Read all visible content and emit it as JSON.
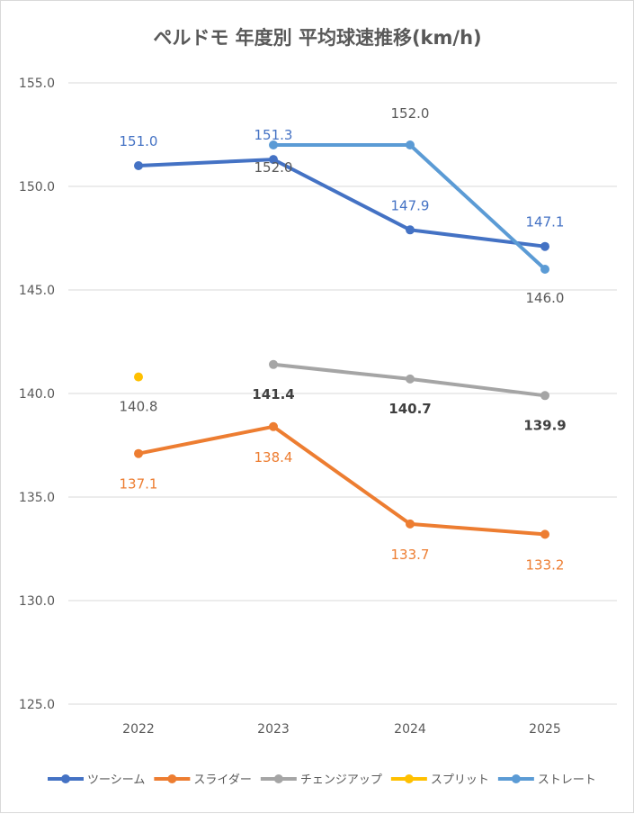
{
  "chart_data": {
    "type": "line",
    "title": "ペルドモ 年度別 平均球速推移(km/h)",
    "categories": [
      "2022",
      "2023",
      "2024",
      "2025"
    ],
    "ylim": [
      125,
      155
    ],
    "yticks": [
      "125.0",
      "130.0",
      "135.0",
      "140.0",
      "145.0",
      "150.0",
      "155.0"
    ],
    "grid": true,
    "legend_position": "bottom",
    "series": [
      {
        "name": "ツーシーム",
        "color": "#4472C4",
        "values": [
          151.0,
          151.3,
          147.9,
          147.1
        ],
        "labels": [
          "151.0",
          "151.3",
          "147.9",
          "147.1"
        ],
        "label_color": "#4472C4",
        "label_bold": false
      },
      {
        "name": "スライダー",
        "color": "#ED7D31",
        "values": [
          137.1,
          138.4,
          133.7,
          133.2
        ],
        "labels": [
          "137.1",
          "138.4",
          "133.7",
          "133.2"
        ],
        "label_color": "#ED7D31",
        "label_bold": false
      },
      {
        "name": "チェンジアップ",
        "color": "#A5A5A5",
        "values": [
          null,
          141.4,
          140.7,
          139.9
        ],
        "labels": [
          null,
          "141.4",
          "140.7",
          "139.9"
        ],
        "label_color": "#404040",
        "label_bold": true
      },
      {
        "name": "スプリット",
        "color": "#FFC000",
        "values": [
          140.8,
          null,
          null,
          null
        ],
        "labels": [
          "140.8",
          null,
          null,
          null
        ],
        "label_color": "#595959",
        "label_bold": false
      },
      {
        "name": "ストレート",
        "color": "#5B9BD5",
        "values": [
          null,
          152.0,
          152.0,
          146.0
        ],
        "labels": [
          null,
          "152.0",
          "152.0",
          "146.0"
        ],
        "label_color": "#595959",
        "label_bold": false
      }
    ]
  }
}
